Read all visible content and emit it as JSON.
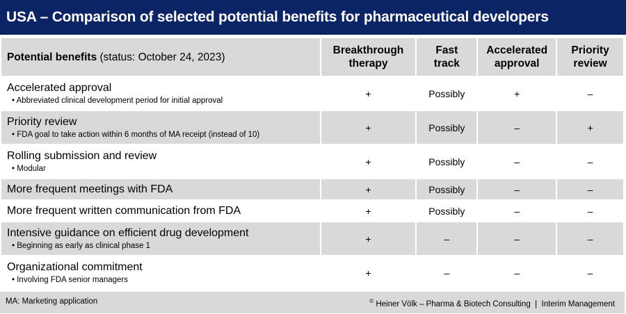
{
  "title": "USA – Comparison of selected potential benefits for pharmaceutical developers",
  "header": {
    "first_bold": "Potential benefits",
    "first_normal": "(status: October 24, 2023)",
    "columns": [
      [
        "Breakthrough",
        "therapy"
      ],
      [
        "Fast",
        "track"
      ],
      [
        "Accelerated",
        "approval"
      ],
      [
        "Priority",
        "review"
      ]
    ]
  },
  "rows": [
    {
      "label": "Accelerated approval",
      "sub": "Abbreviated clinical development period for initial approval",
      "values": [
        "+",
        "Possibly",
        "+",
        "–"
      ]
    },
    {
      "label": "Priority review",
      "sub": "FDA goal to take action within 6 months of MA receipt (instead of 10)",
      "values": [
        "+",
        "Possibly",
        "–",
        "+"
      ]
    },
    {
      "label": "Rolling submission and review",
      "sub": "Modular",
      "values": [
        "+",
        "Possibly",
        "–",
        "–"
      ]
    },
    {
      "label": "More frequent meetings with FDA",
      "sub": null,
      "values": [
        "+",
        "Possibly",
        "–",
        "–"
      ]
    },
    {
      "label": "More frequent written communication from FDA",
      "sub": null,
      "values": [
        "+",
        "Possibly",
        "–",
        "–"
      ]
    },
    {
      "label": "Intensive guidance on efficient drug development",
      "sub": "Beginning as early as clinical phase 1",
      "values": [
        "+",
        "–",
        "–",
        "–"
      ]
    },
    {
      "label": "Organizational commitment",
      "sub": "Involving FDA senior managers",
      "values": [
        "+",
        "–",
        "–",
        "–"
      ]
    }
  ],
  "footer": {
    "note": "MA: Marketing application",
    "copyright_symbol": "©",
    "credit": "Heiner Völk – Pharma & Biotech Consulting  |  Interim Management"
  },
  "colors": {
    "title_bg": "#0a2466",
    "row_gray": "#d9d9d9"
  }
}
